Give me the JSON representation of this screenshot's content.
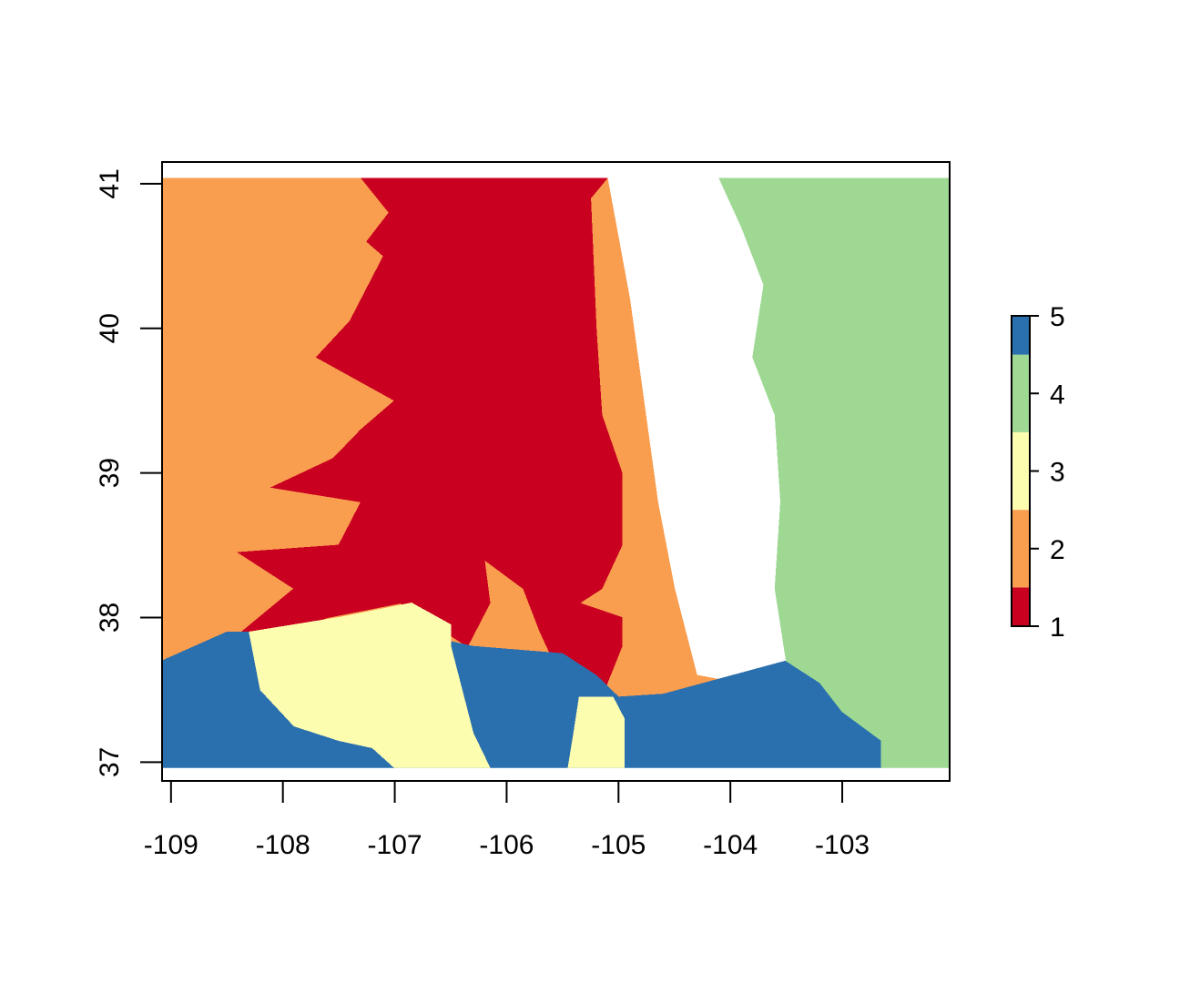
{
  "chart_data": {
    "type": "heatmap",
    "title": "",
    "xlabel": "",
    "ylabel": "",
    "xlim": [
      -109.08,
      -102.04
    ],
    "ylim": [
      36.87,
      41.15
    ],
    "data_extent": {
      "x": [
        -109.08,
        -102.04
      ],
      "y": [
        36.96,
        41.04
      ]
    },
    "x_ticks": [
      {
        "value": -109,
        "label": "-109"
      },
      {
        "value": -108,
        "label": "-108"
      },
      {
        "value": -107,
        "label": "-107"
      },
      {
        "value": -106,
        "label": "-106"
      },
      {
        "value": -105,
        "label": "-105"
      },
      {
        "value": -104,
        "label": "-104"
      },
      {
        "value": -103,
        "label": "-103"
      }
    ],
    "y_ticks": [
      {
        "value": 37,
        "label": "37"
      },
      {
        "value": 38,
        "label": "38"
      },
      {
        "value": 39,
        "label": "39"
      },
      {
        "value": 40,
        "label": "40"
      },
      {
        "value": 41,
        "label": "41"
      }
    ],
    "legend": {
      "placement": "right",
      "classes": [
        {
          "value": 1,
          "label": "1",
          "color": "#ca0020"
        },
        {
          "value": 2,
          "label": "2",
          "color": "#f99d4f"
        },
        {
          "value": 3,
          "label": "3",
          "color": "#fdfdaf"
        },
        {
          "value": 4,
          "label": "4",
          "color": "#9ed893"
        },
        {
          "value": 5,
          "label": "5",
          "color": "#2b70ae"
        }
      ]
    },
    "regions": [
      {
        "name": "class-2-region",
        "value": 2,
        "points": [
          [
            -109.08,
            41.04
          ],
          [
            -105.1,
            41.04
          ],
          [
            -104.9,
            40.2
          ],
          [
            -104.65,
            38.8
          ],
          [
            -104.5,
            38.2
          ],
          [
            -104.3,
            37.6
          ],
          [
            -103.6,
            37.5
          ],
          [
            -103.5,
            37.7
          ],
          [
            -104.6,
            37.47
          ],
          [
            -105.0,
            37.45
          ],
          [
            -105.2,
            37.6
          ],
          [
            -105.5,
            37.75
          ],
          [
            -106.3,
            37.8
          ],
          [
            -107.5,
            37.95
          ],
          [
            -108.3,
            37.9
          ],
          [
            -108.5,
            37.85
          ],
          [
            -109.08,
            37.7
          ]
        ]
      },
      {
        "name": "class-1-region",
        "value": 1,
        "points": [
          [
            -107.3,
            41.04
          ],
          [
            -105.1,
            41.04
          ],
          [
            -105.25,
            40.9
          ],
          [
            -105.2,
            40.0
          ],
          [
            -105.15,
            39.4
          ],
          [
            -104.97,
            39.0
          ],
          [
            -104.97,
            38.5
          ],
          [
            -105.15,
            38.2
          ],
          [
            -105.35,
            38.1
          ],
          [
            -104.97,
            38.0
          ],
          [
            -104.97,
            37.8
          ],
          [
            -105.1,
            37.55
          ],
          [
            -105.2,
            37.3
          ],
          [
            -105.35,
            37.35
          ],
          [
            -105.55,
            37.65
          ],
          [
            -105.7,
            37.9
          ],
          [
            -105.85,
            38.2
          ],
          [
            -106.2,
            38.4
          ],
          [
            -106.15,
            38.1
          ],
          [
            -106.35,
            37.8
          ],
          [
            -106.95,
            38.1
          ],
          [
            -107.6,
            38.0
          ],
          [
            -108.2,
            37.85
          ],
          [
            -108.4,
            37.88
          ],
          [
            -107.9,
            38.2
          ],
          [
            -108.4,
            38.45
          ],
          [
            -107.5,
            38.5
          ],
          [
            -107.3,
            38.8
          ],
          [
            -108.1,
            38.9
          ],
          [
            -107.55,
            39.1
          ],
          [
            -107.3,
            39.3
          ],
          [
            -107.0,
            39.5
          ],
          [
            -107.7,
            39.8
          ],
          [
            -107.4,
            40.05
          ],
          [
            -107.1,
            40.5
          ],
          [
            -107.25,
            40.6
          ],
          [
            -107.05,
            40.8
          ]
        ]
      },
      {
        "name": "class-5-region",
        "value": 5,
        "points": [
          [
            -109.08,
            37.7
          ],
          [
            -108.5,
            37.9
          ],
          [
            -108.3,
            37.9
          ],
          [
            -107.5,
            38.0
          ],
          [
            -106.3,
            37.8
          ],
          [
            -105.5,
            37.75
          ],
          [
            -105.2,
            37.6
          ],
          [
            -105.0,
            37.45
          ],
          [
            -104.6,
            37.47
          ],
          [
            -103.5,
            37.7
          ],
          [
            -103.2,
            37.55
          ],
          [
            -103.0,
            37.35
          ],
          [
            -102.65,
            37.15
          ],
          [
            -102.65,
            36.96
          ],
          [
            -109.08,
            36.96
          ]
        ]
      },
      {
        "name": "class-3-region",
        "value": 3,
        "points": [
          [
            -108.3,
            37.9
          ],
          [
            -107.5,
            38.0
          ],
          [
            -106.85,
            38.1
          ],
          [
            -106.5,
            37.95
          ],
          [
            -106.5,
            37.8
          ],
          [
            -106.3,
            37.2
          ],
          [
            -106.15,
            36.96
          ],
          [
            -107.0,
            36.96
          ],
          [
            -107.2,
            37.1
          ],
          [
            -107.5,
            37.15
          ],
          [
            -107.9,
            37.25
          ],
          [
            -108.2,
            37.5
          ]
        ]
      },
      {
        "name": "class-3-south-patch",
        "value": 3,
        "points": [
          [
            -105.35,
            37.45
          ],
          [
            -105.05,
            37.45
          ],
          [
            -104.95,
            37.3
          ],
          [
            -104.95,
            36.96
          ],
          [
            -105.45,
            36.96
          ],
          [
            -105.4,
            37.2
          ]
        ]
      },
      {
        "name": "class-4-region",
        "value": 4,
        "points": [
          [
            -104.1,
            41.04
          ],
          [
            -102.04,
            41.04
          ],
          [
            -102.04,
            36.96
          ],
          [
            -102.65,
            36.96
          ],
          [
            -102.65,
            37.15
          ],
          [
            -103.0,
            37.35
          ],
          [
            -103.2,
            37.55
          ],
          [
            -103.5,
            37.7
          ],
          [
            -103.6,
            38.2
          ],
          [
            -103.55,
            38.8
          ],
          [
            -103.6,
            39.4
          ],
          [
            -103.8,
            39.8
          ],
          [
            -103.7,
            40.3
          ],
          [
            -103.9,
            40.7
          ]
        ]
      }
    ]
  }
}
